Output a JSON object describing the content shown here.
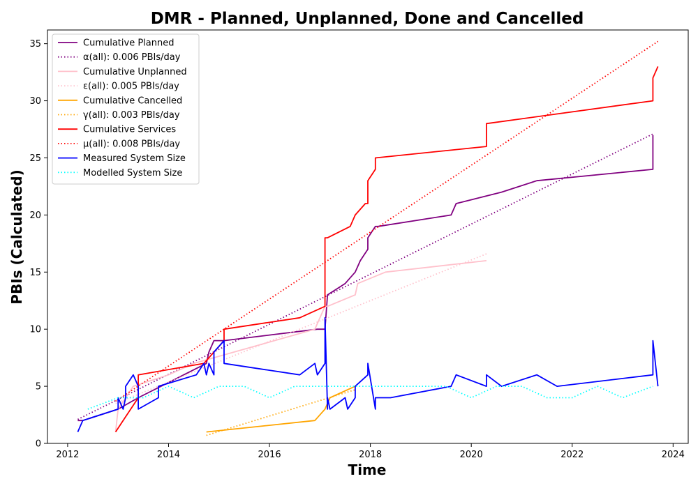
{
  "chart_data": {
    "type": "line",
    "title": "DMR - Planned, Unplanned, Done  and Cancelled",
    "xlabel": "Time",
    "ylabel": "PBIs (Calculated)",
    "xlim": [
      2011.6,
      2024.3
    ],
    "ylim": [
      0,
      36.2
    ],
    "xticks": [
      2012,
      2014,
      2016,
      2018,
      2020,
      2022,
      2024
    ],
    "yticks": [
      0,
      5,
      10,
      15,
      20,
      25,
      30,
      35
    ],
    "grid": false,
    "legend_position": "top-left",
    "series": [
      {
        "name": "Cumulative Planned",
        "color": "#800080",
        "style": "solid",
        "x": [
          2012.2,
          2012.3,
          2013.0,
          2013.4,
          2014.3,
          2014.75,
          2014.8,
          2014.9,
          2015.1,
          2016.95,
          2017.1,
          2017.15,
          2017.5,
          2017.7,
          2017.8,
          2017.95,
          2017.95,
          2018.1,
          2018.15,
          2019.6,
          2019.7,
          2020.6,
          2021.3,
          2023.6,
          2023.6
        ],
        "y": [
          2,
          2,
          3,
          4,
          6,
          7,
          8,
          9,
          9,
          10,
          10,
          13,
          14,
          15,
          16,
          17,
          18,
          19,
          19,
          20,
          21,
          22,
          23,
          24,
          27
        ]
      },
      {
        "name": "α(all): 0.006 PBIs/day",
        "color": "#800080",
        "style": "dotted",
        "x": [
          2012.2,
          2023.6
        ],
        "y": [
          2.1,
          27.1
        ]
      },
      {
        "name": "Cumulative Unplanned",
        "color": "#ffc0cb",
        "style": "solid",
        "x": [
          2012.95,
          2013.0,
          2013.3,
          2014.0,
          2014.5,
          2016.9,
          2017.1,
          2017.15,
          2017.7,
          2017.75,
          2018.3,
          2020.3
        ],
        "y": [
          1,
          3,
          5,
          6,
          7,
          10,
          12,
          12,
          13,
          14,
          15,
          16
        ]
      },
      {
        "name": "ε(all): 0.005 PBIs/day",
        "color": "#ffc0cb",
        "style": "dotted",
        "x": [
          2012.95,
          2020.3
        ],
        "y": [
          3.5,
          16.6
        ]
      },
      {
        "name": "Cumulative Cancelled",
        "color": "#ffa500",
        "style": "solid",
        "x": [
          2014.75,
          2016.9,
          2017.1,
          2017.2,
          2017.7
        ],
        "y": [
          1,
          2,
          3,
          4,
          5
        ]
      },
      {
        "name": "γ(all): 0.003 PBIs/day",
        "color": "#ffa500",
        "style": "dotted",
        "x": [
          2014.75,
          2017.7
        ],
        "y": [
          0.7,
          4.7
        ]
      },
      {
        "name": "Cumulative Services",
        "color": "#ff0000",
        "style": "solid",
        "x": [
          2012.95,
          2013.1,
          2013.4,
          2013.4,
          2014.7,
          2015.1,
          2015.1,
          2016.6,
          2017.1,
          2017.1,
          2017.15,
          2017.6,
          2017.7,
          2017.9,
          2017.95,
          2017.95,
          2018.1,
          2018.1,
          2020.3,
          2020.3,
          2023.6,
          2023.6,
          2023.7
        ],
        "y": [
          1,
          2,
          4,
          6,
          7,
          9,
          10,
          11,
          12,
          18,
          18,
          19,
          20,
          21,
          21,
          23,
          24,
          25,
          26,
          28,
          30,
          32,
          33
        ]
      },
      {
        "name": "μ(all): 0.008 PBIs/day",
        "color": "#ff0000",
        "style": "dotted",
        "x": [
          2012.95,
          2023.7
        ],
        "y": [
          3.7,
          35.2
        ]
      },
      {
        "name": "Measured System Size",
        "color": "#0000ff",
        "style": "solid",
        "x": [
          2012.2,
          2012.3,
          2013.0,
          2013.0,
          2013.1,
          2013.15,
          2013.15,
          2013.3,
          2013.4,
          2013.4,
          2013.8,
          2013.8,
          2014.55,
          2014.7,
          2014.75,
          2014.8,
          2014.9,
          2014.9,
          2015.1,
          2015.1,
          2016.6,
          2016.9,
          2016.95,
          2017.1,
          2017.1,
          2017.15,
          2017.15,
          2017.2,
          2017.5,
          2017.55,
          2017.7,
          2017.7,
          2017.95,
          2017.95,
          2018.1,
          2018.1,
          2018.4,
          2019.6,
          2019.7,
          2020.3,
          2020.3,
          2020.6,
          2021.3,
          2021.7,
          2023.6,
          2023.6,
          2023.7
        ],
        "y": [
          1,
          2,
          3,
          4,
          3,
          4,
          5,
          6,
          5,
          3,
          4,
          5,
          6,
          7,
          6,
          7,
          6,
          8,
          9,
          7,
          6,
          7,
          6,
          7,
          11,
          3,
          4,
          3,
          4,
          3,
          4,
          5,
          6,
          7,
          3,
          4,
          4,
          5,
          6,
          5,
          6,
          5,
          6,
          5,
          6,
          9,
          5
        ]
      },
      {
        "name": "Modelled System Size",
        "color": "#00ffff",
        "style": "dotted",
        "mean": 4.7,
        "x": [
          2012.4,
          2013.0,
          2013.5,
          2014.0,
          2014.5,
          2015.0,
          2015.5,
          2016.0,
          2016.5,
          2017.0,
          2017.5,
          2018.0,
          2018.5,
          2019.0,
          2019.5,
          2020.0,
          2020.5,
          2021.0,
          2021.5,
          2022.0,
          2022.5,
          2023.0,
          2023.6
        ],
        "y": [
          3,
          4,
          4,
          5,
          4,
          5,
          5,
          4,
          5,
          5,
          5,
          5,
          5,
          5,
          5,
          4,
          5,
          5,
          4,
          4,
          5,
          4,
          5
        ]
      }
    ]
  }
}
